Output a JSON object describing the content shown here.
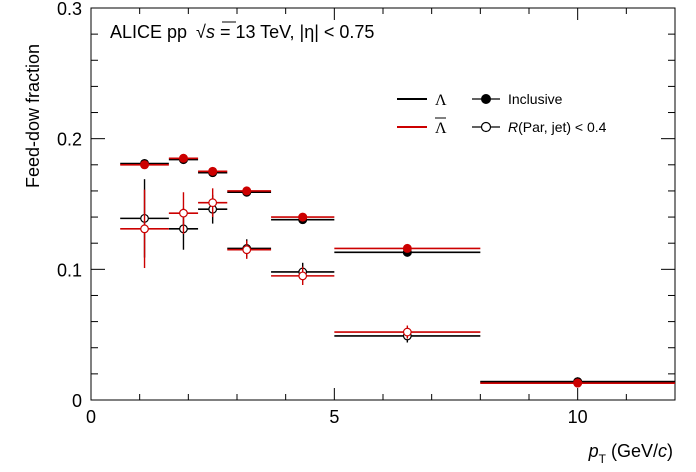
{
  "chart_data": {
    "type": "scatter",
    "annotation": "ALICE pp  √s = 13 TeV, |η| < 0.75",
    "annotation_parts": {
      "prefix": "ALICE pp ",
      "sqrt_sym": "√",
      "sqrt_var": "s",
      "suffix": " = 13 TeV, |η| < 0.75"
    },
    "xlabel": "p_T (GeV/c)",
    "xlabel_parts": {
      "p": "p",
      "T": "T",
      "unit_open": " (GeV/",
      "c": "c",
      "unit_close": ")"
    },
    "ylabel": "Feed-dow fraction",
    "xlim": [
      0,
      12
    ],
    "ylim": [
      0,
      0.3
    ],
    "x_ticks": [
      0,
      5,
      10
    ],
    "x_tick_labels": [
      "0",
      "5",
      "10"
    ],
    "y_ticks": [
      0,
      0.1,
      0.2,
      0.3
    ],
    "y_tick_labels": [
      "0",
      "0.1",
      "0.2",
      "0.3"
    ],
    "colors": {
      "lambda": "#000000",
      "antilambda": "#cc0000"
    },
    "legend": {
      "placement": "top-right",
      "particles": [
        {
          "label": "Λ",
          "color": "#000000",
          "overline": false
        },
        {
          "label": "Λ",
          "color": "#cc0000",
          "overline": true
        }
      ],
      "selections": [
        {
          "label": "Inclusive",
          "marker": "filled"
        },
        {
          "label": "R(Par, jet) < 0.4",
          "marker": "open",
          "italic_prefix": "R",
          "rest": "(Par, jet) < 0.4"
        }
      ]
    },
    "series": [
      {
        "particle": "lambda",
        "selection": "inclusive",
        "marker": "filled",
        "color": "#000000",
        "points": [
          {
            "x": 1.1,
            "y": 0.181,
            "xlo": 0.6,
            "xhi": 1.6,
            "err": 0.003
          },
          {
            "x": 1.9,
            "y": 0.184,
            "xlo": 1.6,
            "xhi": 2.2,
            "err": 0.003
          },
          {
            "x": 2.5,
            "y": 0.174,
            "xlo": 2.2,
            "xhi": 2.8,
            "err": 0.003
          },
          {
            "x": 3.2,
            "y": 0.159,
            "xlo": 2.8,
            "xhi": 3.7,
            "err": 0.003
          },
          {
            "x": 4.35,
            "y": 0.138,
            "xlo": 3.7,
            "xhi": 5.0,
            "err": 0.003
          },
          {
            "x": 6.5,
            "y": 0.113,
            "xlo": 5.0,
            "xhi": 8.0,
            "err": 0.003
          },
          {
            "x": 10.0,
            "y": 0.014,
            "xlo": 8.0,
            "xhi": 12.0,
            "err": 0.003
          }
        ]
      },
      {
        "particle": "antilambda",
        "selection": "inclusive",
        "marker": "filled",
        "color": "#cc0000",
        "points": [
          {
            "x": 1.1,
            "y": 0.18,
            "xlo": 0.6,
            "xhi": 1.6,
            "err": 0.003
          },
          {
            "x": 1.9,
            "y": 0.185,
            "xlo": 1.6,
            "xhi": 2.2,
            "err": 0.003
          },
          {
            "x": 2.5,
            "y": 0.175,
            "xlo": 2.2,
            "xhi": 2.8,
            "err": 0.003
          },
          {
            "x": 3.2,
            "y": 0.16,
            "xlo": 2.8,
            "xhi": 3.7,
            "err": 0.003
          },
          {
            "x": 4.35,
            "y": 0.14,
            "xlo": 3.7,
            "xhi": 5.0,
            "err": 0.003
          },
          {
            "x": 6.5,
            "y": 0.116,
            "xlo": 5.0,
            "xhi": 8.0,
            "err": 0.003
          },
          {
            "x": 10.0,
            "y": 0.013,
            "xlo": 8.0,
            "xhi": 12.0,
            "err": 0.003
          }
        ]
      },
      {
        "particle": "lambda",
        "selection": "R(Par, jet) < 0.4",
        "marker": "open",
        "color": "#000000",
        "points": [
          {
            "x": 1.1,
            "y": 0.139,
            "xlo": 0.6,
            "xhi": 1.6,
            "err": 0.03
          },
          {
            "x": 1.9,
            "y": 0.131,
            "xlo": 1.6,
            "xhi": 2.2,
            "err": 0.016
          },
          {
            "x": 2.5,
            "y": 0.146,
            "xlo": 2.2,
            "xhi": 2.8,
            "err": 0.011
          },
          {
            "x": 3.2,
            "y": 0.116,
            "xlo": 2.8,
            "xhi": 3.7,
            "err": 0.007
          },
          {
            "x": 4.35,
            "y": 0.098,
            "xlo": 3.7,
            "xhi": 5.0,
            "err": 0.007
          },
          {
            "x": 6.5,
            "y": 0.049,
            "xlo": 5.0,
            "xhi": 8.0,
            "err": 0.005
          },
          {
            "x": 10.0,
            "y": 0.014,
            "xlo": 8.0,
            "xhi": 12.0,
            "err": 0.003
          }
        ]
      },
      {
        "particle": "antilambda",
        "selection": "R(Par, jet) < 0.4",
        "marker": "open",
        "color": "#cc0000",
        "points": [
          {
            "x": 1.1,
            "y": 0.131,
            "xlo": 0.6,
            "xhi": 1.6,
            "err": 0.03
          },
          {
            "x": 1.9,
            "y": 0.143,
            "xlo": 1.6,
            "xhi": 2.2,
            "err": 0.016
          },
          {
            "x": 2.5,
            "y": 0.151,
            "xlo": 2.2,
            "xhi": 2.8,
            "err": 0.011
          },
          {
            "x": 3.2,
            "y": 0.115,
            "xlo": 2.8,
            "xhi": 3.7,
            "err": 0.007
          },
          {
            "x": 4.35,
            "y": 0.095,
            "xlo": 3.7,
            "xhi": 5.0,
            "err": 0.007
          },
          {
            "x": 6.5,
            "y": 0.052,
            "xlo": 5.0,
            "xhi": 8.0,
            "err": 0.005
          },
          {
            "x": 10.0,
            "y": 0.013,
            "xlo": 8.0,
            "xhi": 12.0,
            "err": 0.003
          }
        ]
      }
    ]
  }
}
